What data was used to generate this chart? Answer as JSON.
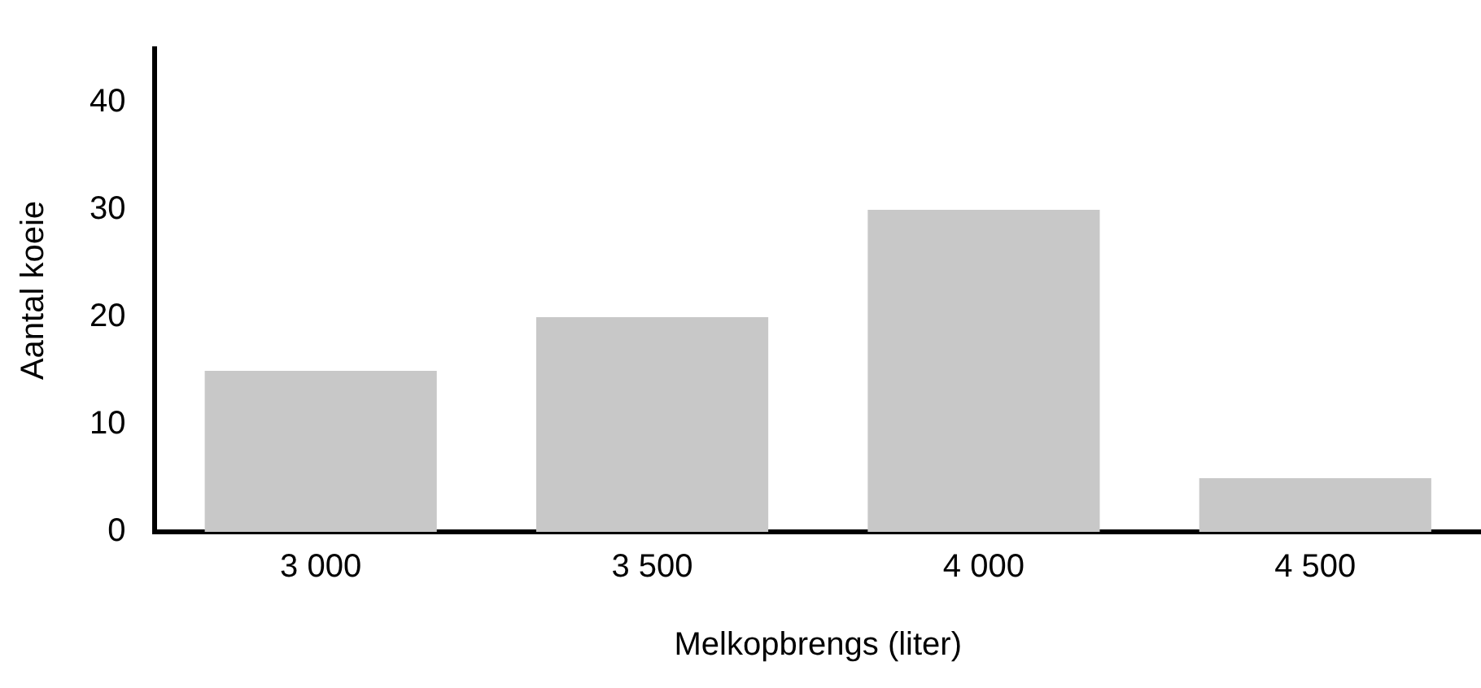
{
  "chart_data": {
    "type": "bar",
    "xlabel": "Melkopbrengs (liter)",
    "ylabel": "Aantal koeie",
    "categories": [
      "3 000",
      "3 500",
      "4 000",
      "4 500"
    ],
    "values": [
      15,
      20,
      30,
      5
    ],
    "color": "#c8c8c8",
    "ylim": [
      0,
      45
    ],
    "yticks": [
      0,
      10,
      20,
      30,
      40
    ],
    "grid": false,
    "legend": false
  }
}
